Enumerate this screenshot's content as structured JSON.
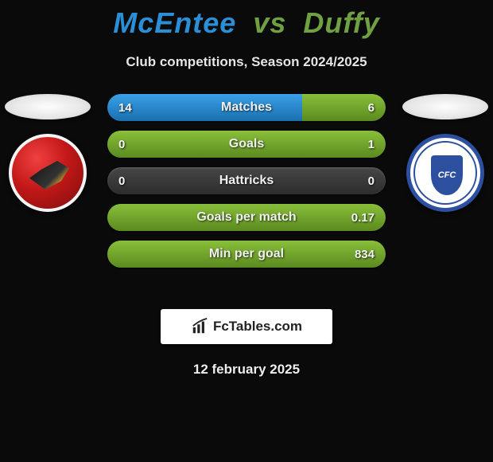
{
  "colors": {
    "bg": "#0a0a0a",
    "player1": "#2a8fd6",
    "player2": "#6fa042",
    "bar_bg_top": "#474747",
    "bar_bg_bottom": "#2c2c2c",
    "fill_p1_top": "#3aa0e8",
    "fill_p1_bottom": "#1a6fae",
    "fill_p2_top": "#8abf3a",
    "fill_p2_bottom": "#5a8a1f",
    "text": "#f0f0f0"
  },
  "title": {
    "player1": "McEntee",
    "vs": "vs",
    "player2": "Duffy"
  },
  "subtitle": "Club competitions, Season 2024/2025",
  "team1": {
    "name": "Walsall FC"
  },
  "team2": {
    "name": "Chesterfield FC",
    "monogram": "CFC"
  },
  "stats": [
    {
      "label": "Matches",
      "v1": "14",
      "v2": "6",
      "p1_pct": 70,
      "p2_pct": 30
    },
    {
      "label": "Goals",
      "v1": "0",
      "v2": "1",
      "p1_pct": 0,
      "p2_pct": 100
    },
    {
      "label": "Hattricks",
      "v1": "0",
      "v2": "0",
      "p1_pct": 0,
      "p2_pct": 0
    },
    {
      "label": "Goals per match",
      "v1": "",
      "v2": "0.17",
      "p1_pct": 0,
      "p2_pct": 100
    },
    {
      "label": "Min per goal",
      "v1": "",
      "v2": "834",
      "p1_pct": 0,
      "p2_pct": 100
    }
  ],
  "watermark": "FcTables.com",
  "date": "12 february 2025"
}
